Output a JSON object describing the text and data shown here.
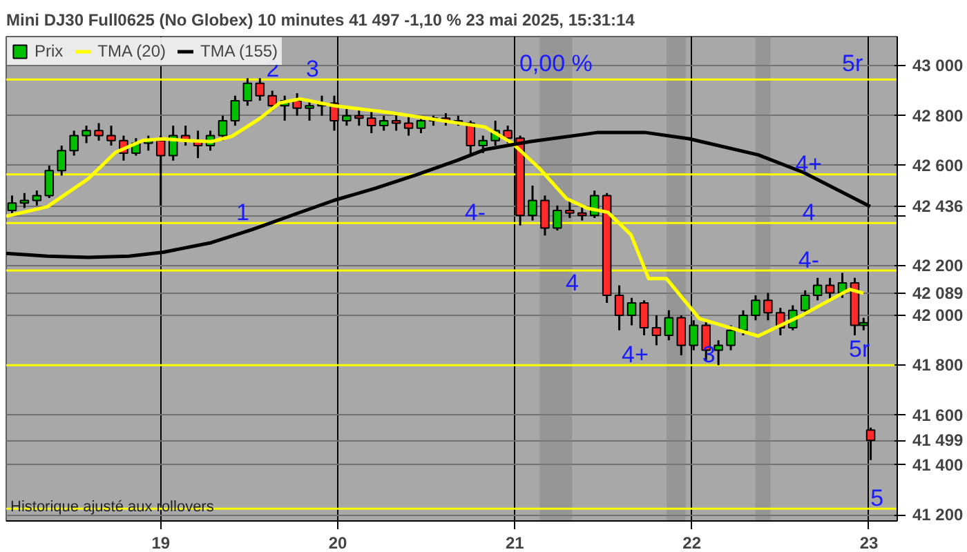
{
  "chart_data": {
    "type": "candlestick",
    "title": "Mini DJ30 Full0625 (No Globex) 10 minutes 41 497 -1,10 % 23 mai 2025, 15:31:14",
    "xlim": [
      18.127,
      23.16
    ],
    "xticks": [
      19,
      20,
      21,
      22,
      23
    ],
    "ylim": [
      41176,
      43117
    ],
    "yticks": [
      {
        "value": 41200,
        "label": "41 200"
      },
      {
        "value": 41400,
        "label": "41 400"
      },
      {
        "value": 41499,
        "label": "41 499"
      },
      {
        "value": 41600,
        "label": "41 600"
      },
      {
        "value": 41800,
        "label": "41 800"
      },
      {
        "value": 42000,
        "label": "42 000"
      },
      {
        "value": 42089,
        "label": "42 089"
      },
      {
        "value": 42200,
        "label": "42 200"
      },
      {
        "value": 42400,
        "label": null
      },
      {
        "value": 42436,
        "label": "42 436"
      },
      {
        "value": 42600,
        "label": "42 600"
      },
      {
        "value": 42800,
        "label": "42 800"
      },
      {
        "value": 43000,
        "label": "43 000"
      }
    ],
    "grid": true,
    "legend": "top left",
    "series": [
      {
        "name": "Prix",
        "colors": [
          "#00c000",
          "#00c000",
          "#00c000",
          "#00c000",
          "#00c000",
          "#00c000",
          "#00c000",
          "#ff2a2a",
          "#ff2a2a",
          "#ff2a2a",
          "#00c000",
          "#00c000",
          "#ff2a2a",
          "#00c000",
          "#ff2a2a",
          "#ff2a2a",
          "#00c000",
          "#00c000",
          "#00c000",
          "#00c000",
          "#ff2a2a",
          "#ff2a2a",
          "#00c000",
          "#ff2a2a",
          "#00c000",
          "#00c000",
          "#ff2a2a",
          "#00c000",
          "#ff2a2a",
          "#ff2a2a",
          "#00c000",
          "#ff2a2a",
          "#ff2a2a",
          "#00c000",
          "#00c000",
          "#ff2a2a",
          "#ff2a2a",
          "#ff2a2a",
          "#00c000",
          "#00c000",
          "#ff2a2a",
          "#ff2a2a",
          "#00c000",
          "#ff2a2a",
          "#00c000",
          "#ff2a2a",
          "#ff2a2a",
          "#00c000",
          "#ff2a2a",
          "#ff2a2a",
          "#00c000",
          "#ff2a2a",
          "#ff2a2a",
          "#00c000",
          "#ff2a2a",
          "#00c000",
          "#ff2a2a",
          "#00c000",
          "#00c000",
          "#00c000",
          "#00c000",
          "#ff2a2a",
          "#ff2a2a",
          "#00c000",
          "#00c000",
          "#00c000",
          "#ff2a2a",
          "#00c000",
          "#ff2a2a",
          "#00c000",
          "#ff2a2a"
        ],
        "x": [
          18.16,
          18.23,
          18.3,
          18.37,
          18.44,
          18.51,
          18.58,
          18.65,
          18.72,
          18.79,
          18.86,
          18.93,
          19.0,
          19.07,
          19.14,
          19.21,
          19.28,
          19.35,
          19.42,
          19.49,
          19.56,
          19.63,
          19.7,
          19.77,
          19.84,
          19.91,
          19.98,
          20.05,
          20.12,
          20.19,
          20.26,
          20.33,
          20.4,
          20.47,
          20.54,
          20.61,
          20.68,
          20.75,
          20.82,
          20.89,
          20.96,
          21.03,
          21.1,
          21.17,
          21.24,
          21.31,
          21.38,
          21.45,
          21.52,
          21.59,
          21.66,
          21.73,
          21.8,
          21.87,
          21.94,
          22.01,
          22.08,
          22.15,
          22.22,
          22.29,
          22.36,
          22.43,
          22.5,
          22.57,
          22.64,
          22.71,
          22.78,
          22.85,
          22.92,
          22.97,
          23.01
        ],
        "ohlc": [
          [
            42420,
            42480,
            42400,
            42450
          ],
          [
            42450,
            42490,
            42430,
            42460
          ],
          [
            42460,
            42500,
            42440,
            42480
          ],
          [
            42480,
            42600,
            42470,
            42580
          ],
          [
            42580,
            42680,
            42560,
            42660
          ],
          [
            42660,
            42740,
            42640,
            42720
          ],
          [
            42720,
            42760,
            42690,
            42740
          ],
          [
            42740,
            42770,
            42700,
            42720
          ],
          [
            42720,
            42760,
            42680,
            42700
          ],
          [
            42700,
            42720,
            42620,
            42650
          ],
          [
            42650,
            42710,
            42640,
            42690
          ],
          [
            42690,
            42720,
            42660,
            42700
          ],
          [
            42700,
            42720,
            42440,
            42640
          ],
          [
            42640,
            42760,
            42620,
            42720
          ],
          [
            42720,
            42760,
            42680,
            42700
          ],
          [
            42700,
            42740,
            42630,
            42680
          ],
          [
            42680,
            42740,
            42660,
            42720
          ],
          [
            42720,
            42800,
            42700,
            42780
          ],
          [
            42780,
            42880,
            42760,
            42860
          ],
          [
            42860,
            42950,
            42840,
            42930
          ],
          [
            42930,
            42950,
            42860,
            42880
          ],
          [
            42880,
            42900,
            42820,
            42840
          ],
          [
            42840,
            42880,
            42780,
            42860
          ],
          [
            42860,
            42890,
            42800,
            42830
          ],
          [
            42830,
            42860,
            42780,
            42840
          ],
          [
            42840,
            42880,
            42800,
            42850
          ],
          [
            42850,
            42880,
            42740,
            42780
          ],
          [
            42780,
            42830,
            42760,
            42800
          ],
          [
            42800,
            42830,
            42760,
            42790
          ],
          [
            42790,
            42820,
            42730,
            42760
          ],
          [
            42760,
            42800,
            42740,
            42780
          ],
          [
            42780,
            42810,
            42740,
            42770
          ],
          [
            42770,
            42800,
            42720,
            42750
          ],
          [
            42750,
            42790,
            42730,
            42780
          ],
          [
            42780,
            42800,
            42760,
            42790
          ],
          [
            42790,
            42810,
            42760,
            42780
          ],
          [
            42780,
            42800,
            42760,
            42770
          ],
          [
            42770,
            42780,
            42640,
            42680
          ],
          [
            42680,
            42720,
            42650,
            42700
          ],
          [
            42700,
            42780,
            42680,
            42740
          ],
          [
            42740,
            42760,
            42690,
            42710
          ],
          [
            42710,
            42720,
            42360,
            42400
          ],
          [
            42400,
            42520,
            42380,
            42460
          ],
          [
            42460,
            42480,
            42320,
            42350
          ],
          [
            42350,
            42440,
            42340,
            42420
          ],
          [
            42420,
            42460,
            42390,
            42410
          ],
          [
            42410,
            42440,
            42380,
            42400
          ],
          [
            42400,
            42500,
            42390,
            42480
          ],
          [
            42480,
            42490,
            42050,
            42080
          ],
          [
            42080,
            42120,
            41940,
            42000
          ],
          [
            42000,
            42070,
            41960,
            42050
          ],
          [
            42050,
            42060,
            41920,
            41950
          ],
          [
            41950,
            42000,
            41880,
            41920
          ],
          [
            41920,
            42020,
            41900,
            41990
          ],
          [
            41990,
            42000,
            41840,
            41880
          ],
          [
            41880,
            41980,
            41860,
            41960
          ],
          [
            41960,
            41980,
            41820,
            41860
          ],
          [
            41860,
            41900,
            41800,
            41880
          ],
          [
            41880,
            41960,
            41860,
            41940
          ],
          [
            41940,
            42020,
            41920,
            42000
          ],
          [
            42000,
            42080,
            41980,
            42060
          ],
          [
            42060,
            42090,
            41980,
            42010
          ],
          [
            42010,
            42030,
            41920,
            41950
          ],
          [
            41950,
            42040,
            41940,
            42020
          ],
          [
            42020,
            42100,
            42000,
            42080
          ],
          [
            42080,
            42150,
            42060,
            42120
          ],
          [
            42120,
            42150,
            42060,
            42090
          ],
          [
            42090,
            42170,
            42070,
            42130
          ],
          [
            42130,
            42150,
            41920,
            41960
          ],
          [
            41960,
            41990,
            41940,
            41970
          ],
          [
            41540,
            41550,
            41420,
            41499
          ]
        ]
      },
      {
        "name": "TMA (20)",
        "type": "line",
        "color": "#ffff00",
        "x": [
          18.127,
          18.359,
          18.59,
          18.745,
          18.899,
          19.015,
          19.131,
          19.285,
          19.401,
          19.556,
          19.671,
          19.787,
          19.98,
          20.289,
          20.675,
          20.83,
          20.984,
          21.139,
          21.293,
          21.409,
          21.525,
          21.656,
          21.756,
          21.857,
          22.042,
          22.374,
          22.629,
          22.891,
          22.969
        ],
        "values": [
          42397,
          42435,
          42547,
          42653,
          42701,
          42707,
          42701,
          42696,
          42717,
          42787,
          42851,
          42867,
          42840,
          42813,
          42771,
          42755,
          42691,
          42589,
          42467,
          42429,
          42413,
          42323,
          42147,
          42147,
          41987,
          41917,
          42003,
          42104,
          42089
        ]
      },
      {
        "name": "TMA (155)",
        "type": "line",
        "color": "#000000",
        "x": [
          18.127,
          18.359,
          18.59,
          18.822,
          19.015,
          19.285,
          19.517,
          19.749,
          19.98,
          20.212,
          20.444,
          20.675,
          20.83,
          21.085,
          21.471,
          21.733,
          21.988,
          22.374,
          22.629,
          23.007
        ],
        "values": [
          42248,
          42237,
          42232,
          42237,
          42253,
          42291,
          42344,
          42403,
          42461,
          42509,
          42563,
          42621,
          42664,
          42696,
          42733,
          42733,
          42707,
          42643,
          42573,
          42436
        ]
      }
    ],
    "ref_lines": [
      {
        "axis": "y",
        "value": 42945,
        "color": "#ffff00"
      },
      {
        "axis": "y",
        "value": 42565,
        "color": "#ffff00"
      },
      {
        "axis": "y",
        "value": 42370,
        "color": "#ffff00"
      },
      {
        "axis": "y",
        "value": 42180,
        "color": "#ffff00"
      },
      {
        "axis": "y",
        "value": 41800,
        "color": "#ffff00"
      },
      {
        "axis": "y",
        "value": 41225,
        "color": "#ffff00"
      }
    ],
    "bands": [
      {
        "axis": "x",
        "from": 21.14,
        "to": 21.324,
        "color": "#808080"
      },
      {
        "axis": "x",
        "from": 21.857,
        "to": 21.965,
        "color": "#808080"
      },
      {
        "axis": "x",
        "from": 22.359,
        "to": 22.444,
        "color": "#808080"
      }
    ],
    "annotations": [
      {
        "text": "2",
        "x": 19.633,
        "y": 42945
      },
      {
        "text": "3",
        "x": 19.857,
        "y": 42945
      },
      {
        "text": "1",
        "x": 19.463,
        "y": 42370
      },
      {
        "text": "4-",
        "x": 20.776,
        "y": 42370
      },
      {
        "text": "4",
        "x": 21.324,
        "y": 42088
      },
      {
        "text": "4+",
        "x": 21.679,
        "y": 41800
      },
      {
        "text": "3",
        "x": 22.096,
        "y": 41800
      },
      {
        "text": "0,00 %",
        "x": 21.232,
        "y": 42945
      },
      {
        "text": "5r",
        "x": 22.907,
        "y": 42945
      },
      {
        "text": "4+",
        "x": 22.66,
        "y": 42565
      },
      {
        "text": "4",
        "x": 22.66,
        "y": 42370
      },
      {
        "text": "4-",
        "x": 22.66,
        "y": 42180
      },
      {
        "text": "5r",
        "x": 22.946,
        "y": 41800
      },
      {
        "text": "5",
        "x": 23.046,
        "y": 41225
      },
      "Historique ajusté aux rollovers"
    ]
  }
}
